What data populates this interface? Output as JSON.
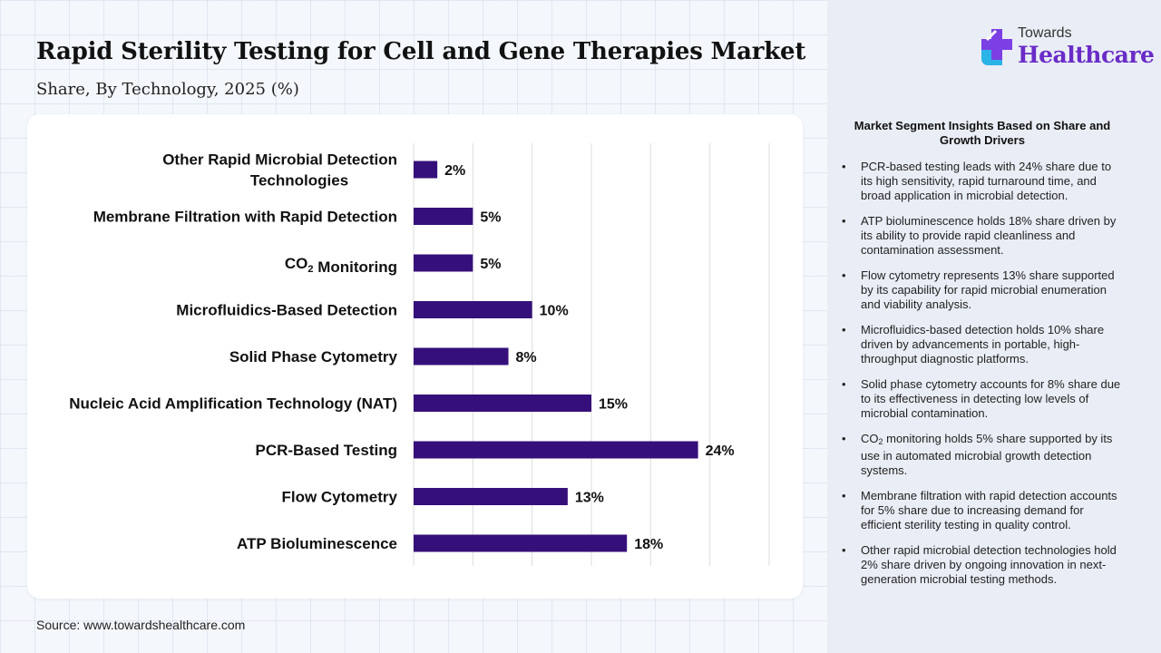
{
  "header": {
    "title": "Rapid Sterility Testing for Cell and Gene Therapies Market",
    "subtitle": "Share, By Technology, 2025 (%)"
  },
  "logo": {
    "top": "Towards",
    "main": "Healthcare"
  },
  "source": "Source: www.towardshealthcare.com",
  "colors": {
    "bar": "#36107a",
    "accent": "#6a2cc7",
    "panel": "#e9edf5"
  },
  "chart_data": {
    "type": "bar",
    "orientation": "horizontal",
    "categories": [
      "Other Rapid Microbial Detection Technologies",
      "Membrane Filtration with Rapid Detection",
      "CO2 Monitoring",
      "Microfluidics-Based Detection",
      "Solid Phase Cytometry",
      "Nucleic Acid Amplification Technology (NAT)",
      "PCR-Based Testing",
      "Flow Cytometry",
      "ATP Bioluminescence"
    ],
    "category_lines": [
      [
        "Other Rapid Microbial Detection",
        "Technologies"
      ],
      [
        "Membrane Filtration with Rapid Detection"
      ],
      [
        "CO2 Monitoring"
      ],
      [
        "Microfluidics-Based Detection"
      ],
      [
        "Solid Phase Cytometry"
      ],
      [
        "Nucleic Acid Amplification Technology (NAT)"
      ],
      [
        "PCR-Based Testing"
      ],
      [
        "Flow Cytometry"
      ],
      [
        "ATP Bioluminescence"
      ]
    ],
    "values": [
      2,
      5,
      5,
      10,
      8,
      15,
      24,
      13,
      18
    ],
    "value_labels": [
      "2%",
      "5%",
      "5%",
      "10%",
      "8%",
      "15%",
      "24%",
      "13%",
      "18%"
    ],
    "xlim": [
      0,
      30
    ],
    "grid": true,
    "bar_color": "#36107a"
  },
  "insights": {
    "title_lines": [
      "Market Segment Insights Based on Share and",
      "Growth Drivers"
    ],
    "items": [
      "PCR-based testing leads with 24% share due to its high sensitivity, rapid turnaround time, and broad application in microbial detection.",
      "ATP bioluminescence holds 18% share driven by its ability to provide rapid cleanliness and contamination assessment.",
      "Flow cytometry represents 13% share supported by its capability for rapid microbial enumeration and viability analysis.",
      "Microfluidics-based detection holds 10% share driven by advancements in portable, high-throughput diagnostic platforms.",
      "Solid phase cytometry accounts for 8% share due to its effectiveness in detecting low levels of microbial contamination.",
      "CO2 monitoring holds 5% share supported by its use in automated microbial growth detection systems.",
      "Membrane filtration with rapid detection accounts for 5% share due to increasing demand for efficient sterility testing in quality control.",
      "Other rapid microbial detection technologies hold 2% share driven by ongoing innovation in next-generation microbial testing methods."
    ]
  }
}
